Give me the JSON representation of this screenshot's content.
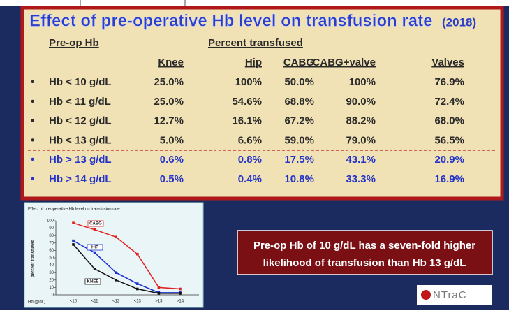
{
  "slide": {
    "title": "Effect of pre-operative Hb level on transfusion rate",
    "year": "(2018)"
  },
  "table": {
    "group_header": [
      "Pre-op Hb",
      "Percent transfused"
    ],
    "columns": [
      "Knee",
      "Hip",
      "CABG",
      "CABG+valve",
      "Valves"
    ],
    "rows": [
      {
        "bullet": "•",
        "label": "Hb < 10 g/dL",
        "cells": [
          "25.0%",
          "100%",
          "50.0%",
          "100%",
          "76.9%"
        ]
      },
      {
        "bullet": "•",
        "label": "Hb < 11 g/dL",
        "cells": [
          "25.0%",
          "54.6%",
          "68.8%",
          "90.0%",
          "72.4%"
        ]
      },
      {
        "bullet": "•",
        "label": "Hb < 12 g/dL",
        "cells": [
          "12.7%",
          "16.1%",
          "67.2%",
          "88.2%",
          "68.0%"
        ]
      },
      {
        "bullet": "•",
        "label": "Hb < 13 g/dL",
        "cells": [
          "5.0%",
          "6.6%",
          "59.0%",
          "79.0%",
          "56.5%"
        ]
      },
      {
        "bullet": "•",
        "label": "Hb > 13 g/dL",
        "cells": [
          "0.6%",
          "0.8%",
          "17.5%",
          "43.1%",
          "20.9%"
        ]
      },
      {
        "bullet": "•",
        "label": "Hb > 14 g/dL",
        "cells": [
          "0.5%",
          "0.4%",
          "10.8%",
          "33.3%",
          "16.9%"
        ]
      }
    ]
  },
  "chart_data": {
    "type": "line",
    "title": "Effect of preoperative Hb level on transfusion rate",
    "x_label": "Hb (g/dL)",
    "y_label": "percent transfused",
    "categories": [
      "<10",
      "<11",
      "<12",
      "<13",
      ">13",
      ">14"
    ],
    "series": [
      {
        "name": "CABG",
        "color": "#e02020",
        "values": [
          97,
          88,
          78,
          55,
          10,
          8
        ]
      },
      {
        "name": "HIP",
        "color": "#1a2fd0",
        "values": [
          73,
          57,
          30,
          15,
          3,
          3
        ]
      },
      {
        "name": "KNEE",
        "color": "#111111",
        "values": [
          68,
          35,
          20,
          8,
          2,
          2
        ]
      }
    ],
    "ylim": [
      0,
      100
    ],
    "yticks": [
      0,
      10,
      20,
      30,
      40,
      50,
      60,
      70,
      80,
      90,
      100
    ]
  },
  "callout": {
    "lines": [
      "Pre-op Hb of 10 g/dL has a seven-fold higher",
      "likelihood of transfusion than Hb 13 g/dL"
    ]
  },
  "logo": {
    "text": "NTraC"
  }
}
